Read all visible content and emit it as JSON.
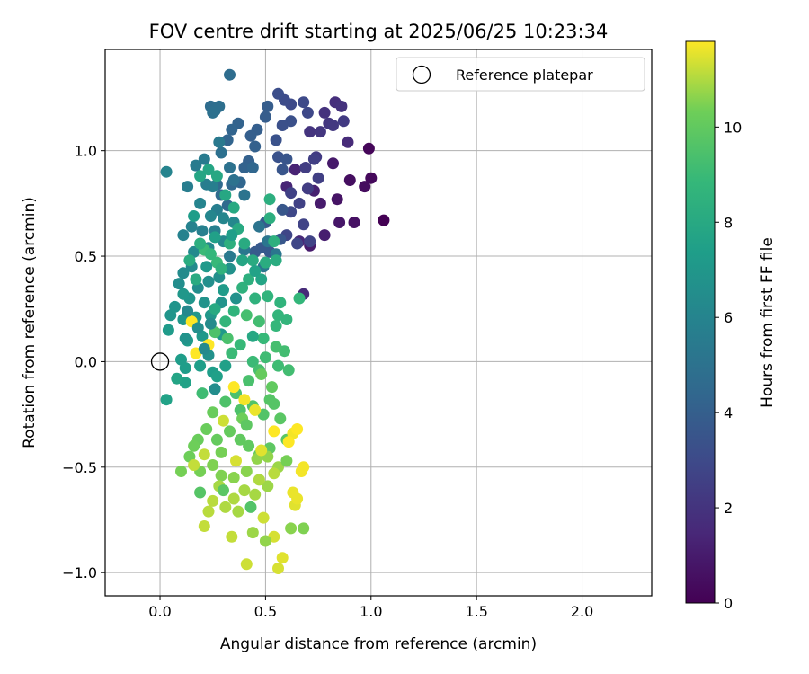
{
  "chart_data": {
    "type": "scatter",
    "title": "FOV centre drift starting at 2025/06/25 10:23:34",
    "xlabel": "Angular distance from reference (arcmin)",
    "ylabel": "Rotation from reference (arcmin)",
    "xlim": [
      -0.26,
      2.33
    ],
    "ylim": [
      -1.11,
      1.48
    ],
    "xticks": [
      "0.0",
      "0.5",
      "1.0",
      "1.5",
      "2.0"
    ],
    "xtick_values": [
      0,
      0.5,
      1.0,
      1.5,
      2.0
    ],
    "yticks": [
      "1.0",
      "0.5",
      "0.0",
      "−0.5",
      "−1.0"
    ],
    "ytick_values": [
      1.0,
      0.5,
      0.0,
      -0.5,
      -1.0
    ],
    "grid": true,
    "legend": {
      "placement": "top-right",
      "entries": [
        "Reference platepar"
      ]
    },
    "reference_point": {
      "x": 0.0,
      "y": 0.0,
      "label": "Reference platepar"
    },
    "colorbar": {
      "label": "Hours from first FF file",
      "min": 0,
      "max": 11.8,
      "ticks": [
        "0",
        "2",
        "4",
        "6",
        "8",
        "10"
      ],
      "tick_values": [
        0,
        2,
        4,
        6,
        8,
        10
      ],
      "colormap": "viridis"
    },
    "points": [
      [
        1.06,
        0.67,
        0.0
      ],
      [
        0.99,
        1.01,
        0.2
      ],
      [
        1.0,
        0.87,
        0.3
      ],
      [
        0.97,
        0.83,
        0.4
      ],
      [
        0.9,
        0.86,
        0.5
      ],
      [
        0.92,
        0.66,
        0.6
      ],
      [
        0.84,
        0.77,
        0.7
      ],
      [
        0.85,
        0.66,
        0.8
      ],
      [
        0.82,
        0.94,
        0.9
      ],
      [
        0.76,
        0.75,
        1.0
      ],
      [
        0.71,
        0.55,
        1.0
      ],
      [
        0.78,
        0.6,
        1.1
      ],
      [
        0.73,
        0.81,
        1.2
      ],
      [
        0.64,
        0.91,
        1.3
      ],
      [
        0.6,
        0.83,
        1.4
      ],
      [
        0.66,
        0.57,
        1.5
      ],
      [
        0.68,
        0.32,
        1.6
      ],
      [
        0.89,
        1.04,
        1.6
      ],
      [
        0.83,
        1.23,
        1.8
      ],
      [
        0.86,
        1.21,
        1.9
      ],
      [
        0.78,
        1.18,
        1.9
      ],
      [
        0.71,
        1.09,
        2.0
      ],
      [
        0.76,
        1.09,
        2.1
      ],
      [
        0.8,
        1.13,
        2.1
      ],
      [
        0.82,
        1.12,
        2.2
      ],
      [
        0.87,
        1.14,
        2.3
      ],
      [
        0.74,
        0.97,
        2.3
      ],
      [
        0.69,
        0.92,
        2.4
      ],
      [
        0.7,
        0.82,
        2.4
      ],
      [
        0.75,
        0.87,
        2.5
      ],
      [
        0.73,
        0.96,
        2.5
      ],
      [
        0.66,
        0.75,
        2.6
      ],
      [
        0.62,
        0.8,
        2.6
      ],
      [
        0.68,
        0.65,
        2.7
      ],
      [
        0.71,
        0.57,
        2.7
      ],
      [
        0.65,
        0.56,
        2.8
      ],
      [
        0.6,
        0.6,
        2.8
      ],
      [
        0.62,
        0.71,
        2.9
      ],
      [
        0.7,
        1.18,
        2.9
      ],
      [
        0.68,
        1.23,
        3.0
      ],
      [
        0.62,
        1.22,
        3.0
      ],
      [
        0.59,
        1.24,
        3.1
      ],
      [
        0.56,
        1.27,
        3.2
      ],
      [
        0.62,
        1.14,
        3.3
      ],
      [
        0.58,
        1.12,
        3.3
      ],
      [
        0.55,
        1.05,
        3.4
      ],
      [
        0.56,
        0.97,
        3.4
      ],
      [
        0.58,
        0.91,
        3.5
      ],
      [
        0.6,
        0.96,
        3.5
      ],
      [
        0.58,
        0.72,
        3.6
      ],
      [
        0.57,
        0.58,
        3.6
      ],
      [
        0.52,
        0.52,
        3.7
      ],
      [
        0.48,
        0.54,
        3.7
      ],
      [
        0.45,
        0.52,
        3.8
      ],
      [
        0.5,
        0.66,
        3.8
      ],
      [
        0.51,
        1.21,
        3.9
      ],
      [
        0.5,
        1.16,
        3.9
      ],
      [
        0.46,
        1.1,
        4.0
      ],
      [
        0.43,
        1.07,
        4.0
      ],
      [
        0.45,
        1.02,
        4.1
      ],
      [
        0.42,
        0.95,
        4.1
      ],
      [
        0.4,
        0.92,
        4.2
      ],
      [
        0.37,
        1.13,
        4.2
      ],
      [
        0.34,
        1.1,
        4.3
      ],
      [
        0.32,
        1.05,
        4.3
      ],
      [
        0.44,
        0.92,
        4.4
      ],
      [
        0.38,
        0.85,
        4.4
      ],
      [
        0.34,
        0.84,
        4.5
      ],
      [
        0.32,
        0.74,
        4.5
      ],
      [
        0.29,
        0.79,
        4.6
      ],
      [
        0.27,
        0.84,
        4.6
      ],
      [
        0.33,
        1.36,
        4.7
      ],
      [
        0.24,
        1.21,
        4.7
      ],
      [
        0.26,
        1.19,
        4.8
      ],
      [
        0.28,
        1.21,
        4.8
      ],
      [
        0.25,
        1.18,
        4.9
      ],
      [
        0.29,
        0.99,
        4.9
      ],
      [
        0.33,
        0.92,
        5.0
      ],
      [
        0.35,
        0.86,
        5.0
      ],
      [
        0.4,
        0.79,
        5.1
      ],
      [
        0.47,
        0.64,
        5.1
      ],
      [
        0.51,
        0.57,
        5.2
      ],
      [
        0.55,
        0.51,
        5.2
      ],
      [
        0.49,
        0.45,
        5.3
      ],
      [
        0.4,
        0.53,
        5.3
      ],
      [
        0.33,
        0.5,
        5.4
      ],
      [
        0.28,
        1.04,
        5.4
      ],
      [
        0.21,
        0.96,
        5.5
      ],
      [
        0.17,
        0.93,
        5.5
      ],
      [
        0.13,
        0.83,
        5.6
      ],
      [
        0.22,
        0.84,
        5.6
      ],
      [
        0.25,
        0.83,
        5.7
      ],
      [
        0.27,
        0.72,
        5.7
      ],
      [
        0.26,
        0.62,
        5.8
      ],
      [
        0.2,
        0.62,
        5.8
      ],
      [
        0.15,
        0.64,
        5.9
      ],
      [
        0.11,
        0.6,
        5.9
      ],
      [
        0.03,
        0.9,
        6.0
      ],
      [
        0.19,
        0.75,
        6.0
      ],
      [
        0.24,
        0.69,
        6.1
      ],
      [
        0.3,
        0.68,
        6.1
      ],
      [
        0.35,
        0.66,
        6.2
      ],
      [
        0.3,
        0.57,
        6.2
      ],
      [
        0.23,
        0.54,
        6.3
      ],
      [
        0.16,
        0.52,
        6.3
      ],
      [
        0.15,
        0.45,
        6.4
      ],
      [
        0.11,
        0.42,
        6.4
      ],
      [
        0.09,
        0.37,
        6.5
      ],
      [
        0.18,
        0.35,
        6.5
      ],
      [
        0.23,
        0.38,
        6.6
      ],
      [
        0.28,
        0.4,
        6.6
      ],
      [
        0.33,
        0.44,
        6.7
      ],
      [
        0.36,
        0.3,
        6.7
      ],
      [
        0.29,
        0.28,
        6.8
      ],
      [
        0.21,
        0.28,
        6.8
      ],
      [
        0.14,
        0.3,
        6.9
      ],
      [
        0.05,
        0.22,
        6.9
      ],
      [
        0.11,
        0.2,
        7.0
      ],
      [
        0.17,
        0.21,
        7.0
      ],
      [
        0.24,
        0.22,
        7.0
      ],
      [
        0.29,
        0.13,
        7.1
      ],
      [
        0.2,
        0.12,
        7.1
      ],
      [
        0.13,
        0.1,
        7.2
      ],
      [
        0.04,
        0.15,
        7.2
      ],
      [
        0.1,
        0.01,
        7.3
      ],
      [
        0.12,
        -0.03,
        7.3
      ],
      [
        0.19,
        -0.02,
        7.4
      ],
      [
        0.25,
        -0.05,
        7.4
      ],
      [
        0.27,
        -0.07,
        7.5
      ],
      [
        0.31,
        -0.02,
        7.5
      ],
      [
        0.12,
        -0.1,
        7.6
      ],
      [
        0.03,
        -0.18,
        7.6
      ],
      [
        0.08,
        -0.08,
        7.7
      ],
      [
        0.19,
        0.88,
        7.8
      ],
      [
        0.23,
        0.91,
        7.8
      ],
      [
        0.27,
        0.88,
        7.9
      ],
      [
        0.31,
        0.79,
        7.9
      ],
      [
        0.35,
        0.73,
        8.0
      ],
      [
        0.37,
        0.63,
        8.0
      ],
      [
        0.4,
        0.56,
        8.1
      ],
      [
        0.44,
        0.48,
        8.1
      ],
      [
        0.5,
        0.47,
        8.2
      ],
      [
        0.55,
        0.48,
        8.2
      ],
      [
        0.52,
        0.77,
        8.3
      ],
      [
        0.52,
        0.68,
        8.3
      ],
      [
        0.54,
        0.57,
        8.4
      ],
      [
        0.42,
        0.39,
        8.4
      ],
      [
        0.39,
        0.35,
        8.5
      ],
      [
        0.45,
        0.3,
        8.5
      ],
      [
        0.51,
        0.31,
        8.6
      ],
      [
        0.57,
        0.28,
        8.6
      ],
      [
        0.56,
        0.22,
        8.7
      ],
      [
        0.6,
        0.2,
        8.7
      ],
      [
        0.66,
        0.3,
        8.8
      ],
      [
        0.55,
        0.17,
        8.8
      ],
      [
        0.49,
        0.11,
        8.9
      ],
      [
        0.38,
        0.08,
        8.9
      ],
      [
        0.34,
        0.04,
        9.0
      ],
      [
        0.44,
        0.0,
        9.0
      ],
      [
        0.5,
        0.02,
        9.1
      ],
      [
        0.56,
        -0.02,
        9.1
      ],
      [
        0.61,
        -0.04,
        9.2
      ],
      [
        0.59,
        0.05,
        9.2
      ],
      [
        0.55,
        0.07,
        9.3
      ],
      [
        0.47,
        -0.04,
        9.3
      ],
      [
        0.42,
        -0.09,
        9.4
      ],
      [
        0.36,
        -0.15,
        9.4
      ],
      [
        0.31,
        -0.19,
        9.5
      ],
      [
        0.38,
        -0.23,
        9.5
      ],
      [
        0.44,
        -0.21,
        9.6
      ],
      [
        0.49,
        -0.25,
        9.6
      ],
      [
        0.54,
        -0.2,
        9.7
      ],
      [
        0.52,
        -0.18,
        9.7
      ],
      [
        0.57,
        -0.27,
        9.8
      ],
      [
        0.6,
        -0.37,
        9.8
      ],
      [
        0.52,
        -0.41,
        9.9
      ],
      [
        0.47,
        -0.44,
        9.9
      ],
      [
        0.42,
        -0.4,
        10.0
      ],
      [
        0.38,
        -0.37,
        10.0
      ],
      [
        0.33,
        -0.33,
        10.1
      ],
      [
        0.27,
        -0.37,
        10.1
      ],
      [
        0.22,
        -0.32,
        10.2
      ],
      [
        0.18,
        -0.37,
        10.2
      ],
      [
        0.16,
        -0.4,
        10.3
      ],
      [
        0.14,
        -0.45,
        10.3
      ],
      [
        0.1,
        -0.52,
        10.4
      ],
      [
        0.19,
        -0.52,
        10.4
      ],
      [
        0.25,
        -0.49,
        10.5
      ],
      [
        0.29,
        -0.54,
        10.5
      ],
      [
        0.35,
        -0.55,
        10.6
      ],
      [
        0.41,
        -0.52,
        10.6
      ],
      [
        0.46,
        -0.46,
        10.7
      ],
      [
        0.51,
        -0.45,
        10.7
      ],
      [
        0.56,
        -0.5,
        10.8
      ],
      [
        0.51,
        -0.59,
        10.8
      ],
      [
        0.45,
        -0.63,
        10.9
      ],
      [
        0.4,
        -0.61,
        10.9
      ],
      [
        0.35,
        -0.65,
        11.0
      ],
      [
        0.31,
        -0.69,
        11.0
      ],
      [
        0.25,
        -0.66,
        11.1
      ],
      [
        0.23,
        -0.71,
        11.1
      ],
      [
        0.21,
        -0.78,
        11.2
      ],
      [
        0.34,
        -0.83,
        11.2
      ],
      [
        0.41,
        -0.96,
        11.3
      ],
      [
        0.49,
        -0.74,
        11.3
      ],
      [
        0.54,
        -0.83,
        11.4
      ],
      [
        0.56,
        -0.98,
        11.4
      ],
      [
        0.58,
        -0.93,
        11.5
      ],
      [
        0.64,
        -0.68,
        11.5
      ],
      [
        0.65,
        -0.65,
        11.6
      ],
      [
        0.63,
        -0.62,
        11.6
      ],
      [
        0.67,
        -0.52,
        11.7
      ],
      [
        0.68,
        -0.5,
        11.7
      ],
      [
        0.63,
        -0.34,
        11.7
      ],
      [
        0.65,
        -0.32,
        11.8
      ],
      [
        0.61,
        -0.38,
        11.8
      ],
      [
        0.54,
        -0.33,
        11.8
      ],
      [
        0.15,
        0.19,
        11.8
      ],
      [
        0.17,
        0.04,
        11.8
      ],
      [
        0.23,
        0.08,
        11.8
      ],
      [
        0.35,
        -0.12,
        11.8
      ],
      [
        0.4,
        -0.18,
        11.7
      ],
      [
        0.45,
        -0.23,
        11.6
      ],
      [
        0.48,
        -0.42,
        11.5
      ],
      [
        0.36,
        -0.47,
        11.4
      ],
      [
        0.3,
        -0.28,
        11.3
      ],
      [
        0.21,
        -0.44,
        11.2
      ],
      [
        0.16,
        -0.49,
        11.2
      ],
      [
        0.54,
        -0.53,
        11.1
      ],
      [
        0.47,
        -0.56,
        11.0
      ],
      [
        0.28,
        -0.59,
        10.9
      ],
      [
        0.37,
        -0.71,
        10.9
      ],
      [
        0.44,
        -0.81,
        10.8
      ],
      [
        0.5,
        -0.85,
        10.7
      ],
      [
        0.62,
        -0.79,
        10.6
      ],
      [
        0.68,
        -0.79,
        10.5
      ],
      [
        0.6,
        -0.47,
        10.4
      ],
      [
        0.29,
        -0.43,
        10.4
      ],
      [
        0.39,
        -0.27,
        10.3
      ],
      [
        0.25,
        -0.24,
        10.2
      ],
      [
        0.48,
        -0.06,
        10.1
      ],
      [
        0.53,
        -0.12,
        10.0
      ],
      [
        0.41,
        -0.3,
        9.9
      ],
      [
        0.3,
        -0.61,
        9.8
      ],
      [
        0.19,
        -0.62,
        9.7
      ],
      [
        0.43,
        -0.69,
        9.6
      ],
      [
        0.26,
        0.14,
        9.5
      ],
      [
        0.32,
        0.11,
        9.4
      ],
      [
        0.41,
        0.22,
        9.3
      ],
      [
        0.47,
        0.19,
        9.2
      ],
      [
        0.2,
        -0.15,
        9.1
      ],
      [
        0.21,
        0.53,
        9.0
      ],
      [
        0.27,
        0.47,
        8.9
      ],
      [
        0.24,
        0.51,
        8.8
      ],
      [
        0.31,
        0.19,
        8.7
      ],
      [
        0.35,
        0.24,
        8.6
      ],
      [
        0.29,
        0.44,
        8.5
      ],
      [
        0.33,
        0.56,
        8.4
      ],
      [
        0.19,
        0.56,
        8.3
      ],
      [
        0.14,
        0.48,
        8.2
      ],
      [
        0.17,
        0.39,
        8.1
      ],
      [
        0.26,
        0.25,
        8.0
      ],
      [
        0.44,
        0.12,
        7.9
      ],
      [
        0.39,
        0.48,
        7.8
      ],
      [
        0.48,
        0.39,
        7.7
      ],
      [
        0.45,
        0.43,
        7.6
      ],
      [
        0.26,
        0.59,
        7.5
      ],
      [
        0.34,
        0.6,
        7.4
      ],
      [
        0.16,
        0.69,
        7.3
      ],
      [
        0.3,
        0.34,
        7.2
      ],
      [
        0.22,
        0.45,
        7.1
      ],
      [
        0.11,
        0.32,
        7.0
      ],
      [
        0.07,
        0.26,
        6.9
      ],
      [
        0.12,
        0.11,
        6.8
      ],
      [
        0.23,
        0.03,
        6.7
      ],
      [
        0.18,
        0.16,
        6.6
      ],
      [
        0.26,
        -0.13,
        6.5
      ],
      [
        0.24,
        0.18,
        6.4
      ],
      [
        0.21,
        0.06,
        6.3
      ],
      [
        0.13,
        0.24,
        6.2
      ]
    ]
  }
}
